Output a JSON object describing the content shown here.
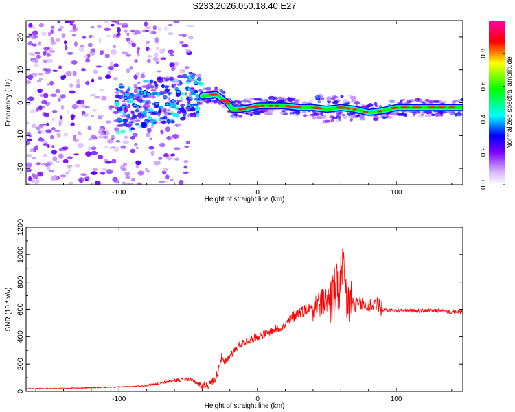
{
  "title": "S233.2026.050.18.40.E27",
  "chart_data": [
    {
      "type": "heatmap",
      "xlabel": "Height of straight line (km)",
      "ylabel": "Frequency (Hz)",
      "xlim": [
        -167,
        148
      ],
      "ylim": [
        -25,
        25
      ],
      "xticks": [
        -100,
        0,
        100
      ],
      "yticks": [
        -20,
        -10,
        0,
        10,
        20
      ],
      "colorbar": {
        "label": "Normalized spectral amplitude",
        "range": [
          0,
          1
        ],
        "ticks": [
          "0.0",
          "0.2",
          "0.4",
          "0.6",
          "0.8"
        ],
        "colormap": "rainbow"
      },
      "ridge": {
        "x": [
          -40,
          -30,
          -22,
          -18,
          -12,
          -5,
          0,
          10,
          20,
          30,
          40,
          50,
          60,
          70,
          80,
          90,
          100,
          110,
          120,
          130,
          140,
          148
        ],
        "y": [
          2,
          2.5,
          0,
          -2,
          -2,
          -1.5,
          -1,
          -1,
          -1,
          -1.5,
          -1.5,
          -2,
          -1.5,
          -2,
          -3,
          -2.5,
          -1.5,
          -1.5,
          -1.5,
          -1.5,
          -1.5,
          -1.5
        ]
      }
    },
    {
      "type": "line",
      "xlabel": "Height of straight line (km)",
      "ylabel": "SNR (10 * v/v)",
      "xlim": [
        -167,
        148
      ],
      "ylim": [
        0,
        1200
      ],
      "xticks": [
        -100,
        0,
        100
      ],
      "yticks": [
        0,
        200,
        400,
        600,
        800,
        1000,
        1200
      ],
      "color": "#ff0000",
      "series": [
        {
          "x": [
            -167,
            -150,
            -130,
            -110,
            -90,
            -80,
            -70,
            -60,
            -50,
            -45,
            -40,
            -35,
            -30,
            -26,
            -24,
            -20,
            -15,
            -10,
            -5,
            0,
            5,
            10,
            15,
            20,
            25,
            30,
            35,
            40,
            45,
            50,
            55,
            58,
            60,
            62,
            64,
            66,
            70,
            75,
            80,
            85,
            90,
            95,
            100,
            110,
            120,
            130,
            140,
            148
          ],
          "y": [
            20,
            20,
            25,
            30,
            35,
            45,
            60,
            80,
            90,
            70,
            40,
            50,
            100,
            250,
            200,
            260,
            320,
            360,
            380,
            400,
            420,
            440,
            460,
            480,
            540,
            580,
            600,
            620,
            640,
            660,
            700,
            750,
            800,
            850,
            700,
            650,
            620,
            640,
            620,
            650,
            600,
            590,
            590,
            590,
            590,
            590,
            580,
            580
          ]
        }
      ]
    }
  ]
}
